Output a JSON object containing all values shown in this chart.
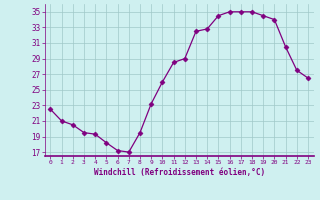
{
  "x": [
    0,
    1,
    2,
    3,
    4,
    5,
    6,
    7,
    8,
    9,
    10,
    11,
    12,
    13,
    14,
    15,
    16,
    17,
    18,
    19,
    20,
    21,
    22,
    23
  ],
  "y": [
    22.5,
    21.0,
    20.5,
    19.5,
    19.3,
    18.2,
    17.2,
    17.0,
    19.5,
    23.2,
    26.0,
    28.5,
    29.0,
    32.5,
    32.8,
    34.5,
    35.0,
    35.0,
    35.0,
    34.5,
    34.0,
    30.5,
    27.5,
    26.5
  ],
  "line_color": "#800080",
  "marker": "D",
  "bg_color": "#cff0f0",
  "grid_color": "#a0c8c8",
  "xlabel": "Windchill (Refroidissement éolien,°C)",
  "xlabel_color": "#800080",
  "ytick_labels": [
    "17",
    "19",
    "21",
    "23",
    "25",
    "27",
    "29",
    "31",
    "33",
    "35"
  ],
  "ytick_vals": [
    17,
    19,
    21,
    23,
    25,
    27,
    29,
    31,
    33,
    35
  ],
  "xticks": [
    0,
    1,
    2,
    3,
    4,
    5,
    6,
    7,
    8,
    9,
    10,
    11,
    12,
    13,
    14,
    15,
    16,
    17,
    18,
    19,
    20,
    21,
    22,
    23
  ],
  "ylim": [
    16.5,
    36.0
  ],
  "xlim": [
    -0.5,
    23.5
  ]
}
